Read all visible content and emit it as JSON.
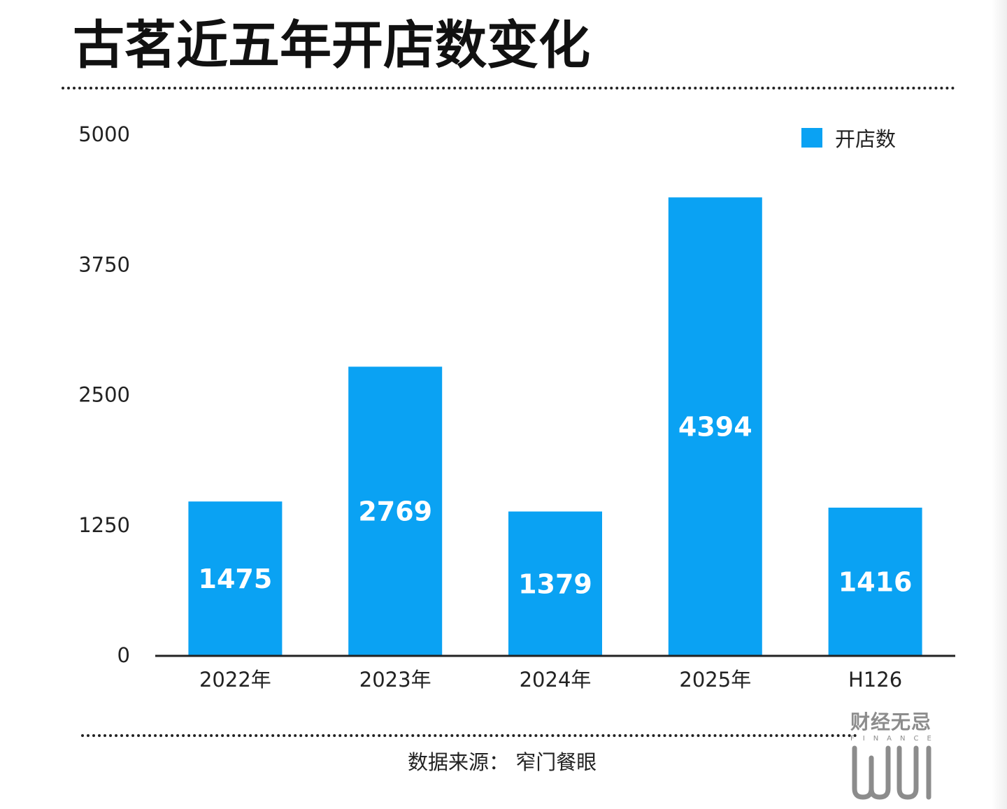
{
  "title": "古茗近五年开店数变化",
  "chart_data": {
    "type": "bar",
    "categories": [
      "2022年",
      "2023年",
      "2024年",
      "2025年",
      "H126"
    ],
    "series": [
      {
        "name": "开店数",
        "values": [
          1475,
          2769,
          1379,
          4394,
          1416
        ],
        "color": "#0aa2f3"
      }
    ],
    "ylim": [
      0,
      5000
    ],
    "yticks": [
      0,
      1250,
      2500,
      3750,
      5000
    ],
    "grid": false,
    "legend_position": "top-right",
    "data_labels": true
  },
  "source": "数据来源： 窄门餐眼",
  "logo": {
    "name": "财经无忌",
    "sub": "FINANCE",
    "mark": "wuji-logo-mark"
  }
}
